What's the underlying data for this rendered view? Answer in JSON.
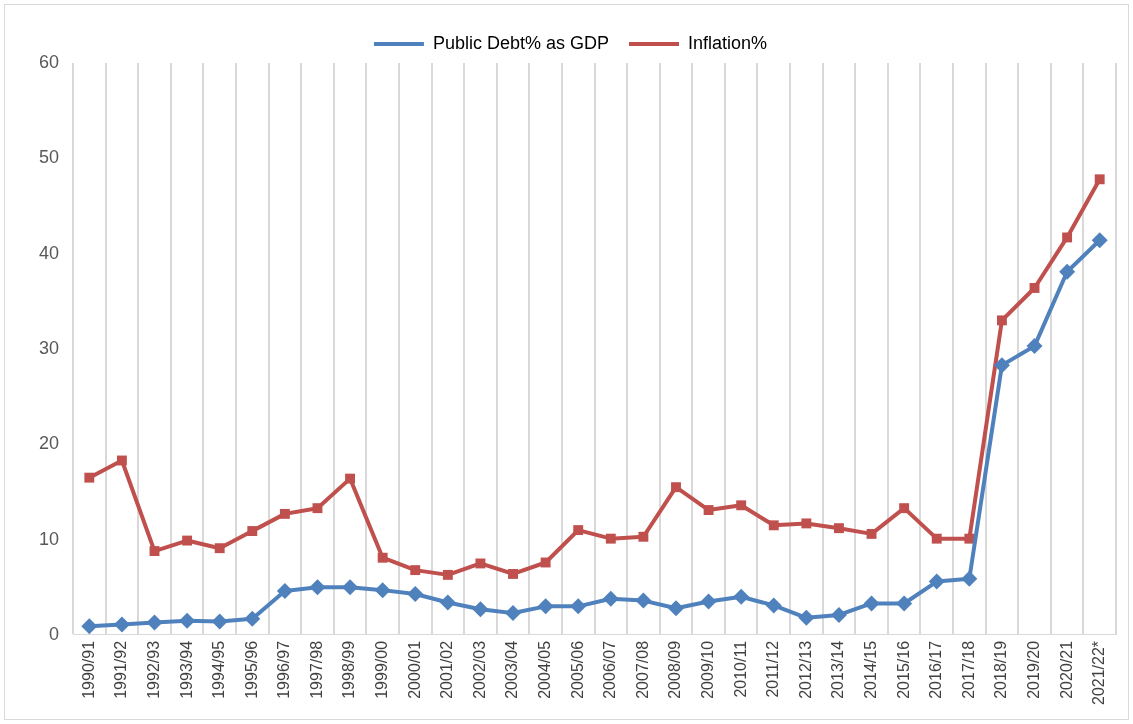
{
  "chart_data": {
    "type": "line",
    "categories": [
      "1990/91",
      "1991/92",
      "1992/93",
      "1993/94",
      "1994/95",
      "1995/96",
      "1996/97",
      "1997/98",
      "1998/99",
      "1999/00",
      "2000/01",
      "2001/02",
      "2002/03",
      "2003/04",
      "2004/05",
      "2005/06",
      "2006/07",
      "2007/08",
      "2008/09",
      "2009/10",
      "2010/11",
      "2011/12",
      "2012/13",
      "2013/14",
      "2014/15",
      "2015/16",
      "2016/17",
      "2017/18",
      "2018/19",
      "2019/20",
      "2020/21",
      "2021/22*"
    ],
    "series": [
      {
        "name": "Public Debt% as GDP",
        "color": "#4f81bd",
        "marker": "diamond",
        "values": [
          0.9,
          1.1,
          1.3,
          1.5,
          1.4,
          1.7,
          4.6,
          5.0,
          5.0,
          4.7,
          4.3,
          3.4,
          2.7,
          2.3,
          3.0,
          3.0,
          3.8,
          3.6,
          2.8,
          3.5,
          4.0,
          3.1,
          1.8,
          2.1,
          3.3,
          3.3,
          5.6,
          5.9,
          28.3,
          30.3,
          38.1,
          41.4
        ]
      },
      {
        "name": "Inflation%",
        "color": "#c0504d",
        "marker": "square",
        "values": [
          16.5,
          18.3,
          8.8,
          9.9,
          9.1,
          10.9,
          12.7,
          13.3,
          16.4,
          8.1,
          6.8,
          6.3,
          7.5,
          6.4,
          7.6,
          11.0,
          10.1,
          10.3,
          15.5,
          13.1,
          13.6,
          11.5,
          11.7,
          11.2,
          10.6,
          13.3,
          10.1,
          10.1,
          33.0,
          36.4,
          41.7,
          47.8
        ]
      }
    ],
    "ylim": [
      0,
      60
    ],
    "yticks": [
      0,
      10,
      20,
      30,
      40,
      50,
      60
    ],
    "grid": "x",
    "legend": "top",
    "line_style": "solid"
  }
}
